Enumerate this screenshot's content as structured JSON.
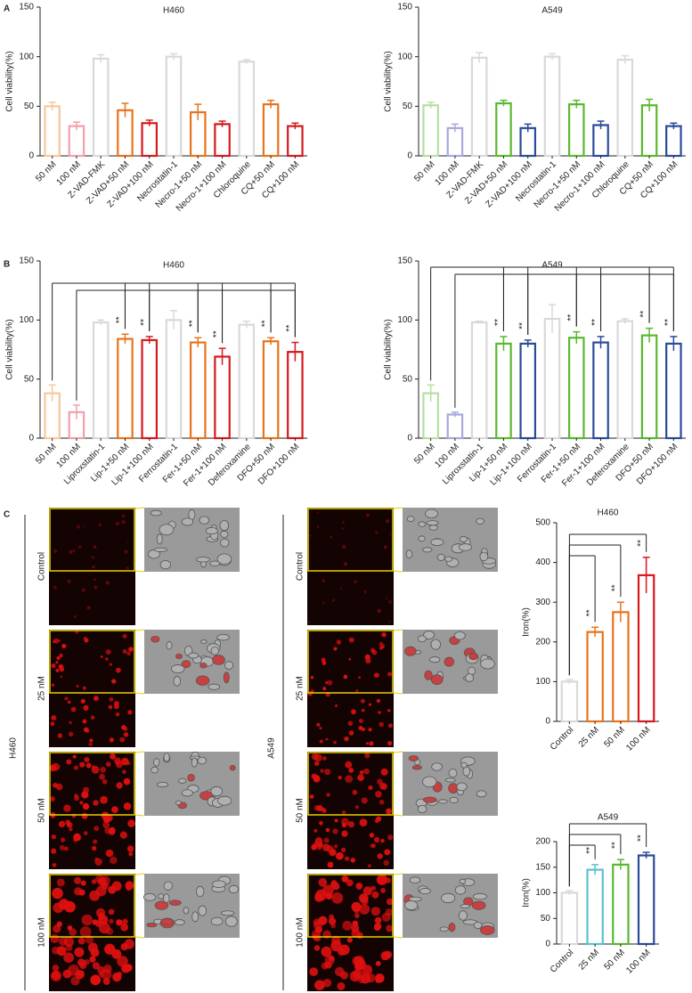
{
  "panels": [
    "A",
    "B",
    "C"
  ],
  "micrographs": [
    {
      "label": "H460",
      "rows": [
        "Control",
        "25 nM",
        "50 nM",
        "100 nM"
      ]
    },
    {
      "label": "A549",
      "rows": [
        "Control",
        "25 nM",
        "50 nM",
        "100 nM"
      ]
    }
  ],
  "chart_data": [
    {
      "type": "bar",
      "title": "H460",
      "ylabel": "Cell viability(%)",
      "categories": [
        "50 nM",
        "100 nM",
        "Z-VAD-FMK",
        "Z-VAD+50 nM",
        "Z-VAD+100 nM",
        "Necrostatin-1",
        "Necro-1+50 nM",
        "Necro-1+100 nM",
        "Chloroquine",
        "CQ+50 nM",
        "CQ+100 nM"
      ],
      "values": [
        50,
        30,
        98,
        46,
        33,
        100,
        44,
        32,
        95,
        52,
        30
      ],
      "errors": [
        4,
        4,
        4,
        7,
        3,
        3,
        8,
        3,
        2,
        4,
        3
      ],
      "colors": [
        "#f5c99a",
        "#f0a0a8",
        "#d9d9d9",
        "#e8731c",
        "#d7191c",
        "#d9d9d9",
        "#e8731c",
        "#d7191c",
        "#d9d9d9",
        "#e8731c",
        "#d7191c"
      ],
      "ylim": [
        0,
        150
      ],
      "yticks": [
        0,
        50,
        100,
        150
      ]
    },
    {
      "type": "bar",
      "title": "A549",
      "ylabel": "Cell viability(%)",
      "categories": [
        "50 nM",
        "100 nM",
        "Z-VAD-FMK",
        "Z-VAD+50 nM",
        "Z-VAD+100 nM",
        "Necrostatin-1",
        "Necro-1+50 nM",
        "Necro-1+100 nM",
        "Chloroquine",
        "CQ+50 nM",
        "CQ+100 nM"
      ],
      "values": [
        51,
        28,
        99,
        53,
        28,
        100,
        52,
        31,
        97,
        51,
        30
      ],
      "errors": [
        3,
        4,
        5,
        3,
        4,
        3,
        4,
        4,
        4,
        6,
        3
      ],
      "colors": [
        "#b5dfa0",
        "#a8a8dc",
        "#d9d9d9",
        "#5ab82e",
        "#2a4a9a",
        "#d9d9d9",
        "#5ab82e",
        "#2a4a9a",
        "#d9d9d9",
        "#5ab82e",
        "#2a4a9a"
      ],
      "ylim": [
        0,
        150
      ],
      "yticks": [
        0,
        50,
        100,
        150
      ]
    },
    {
      "type": "bar",
      "title": "H460",
      "ylabel": "Cell viability(%)",
      "categories": [
        "50 nM",
        "100 nM",
        "Liproxstatin-1",
        "Lip-1+50 nM",
        "Lip-1+100 nM",
        "Ferrostatin-1",
        "Fer-1+50 nM",
        "Fer-1+100 nM",
        "Deferoxamine",
        "DFO+50 nM",
        "DFO+100 nM"
      ],
      "values": [
        38,
        22,
        98,
        84,
        83,
        100,
        81,
        69,
        96,
        82,
        73
      ],
      "errors": [
        7,
        6,
        2,
        4,
        3,
        8,
        4,
        7,
        3,
        3,
        8
      ],
      "colors": [
        "#f5c99a",
        "#f0a0a8",
        "#d9d9d9",
        "#e8731c",
        "#d7191c",
        "#d9d9d9",
        "#e8731c",
        "#d7191c",
        "#d9d9d9",
        "#e8731c",
        "#d7191c"
      ],
      "significance": [
        null,
        null,
        null,
        "**",
        "**",
        null,
        "**",
        "**",
        null,
        "**",
        "**"
      ],
      "ylim": [
        0,
        150
      ],
      "yticks": [
        0,
        50,
        100,
        150
      ]
    },
    {
      "type": "bar",
      "title": "A549",
      "ylabel": "Cell viability(%)",
      "categories": [
        "50 nM",
        "100 nM",
        "Liproxstatin-1",
        "Lip-1+50 nM",
        "Lip-1+100 nM",
        "Ferrostatin-1",
        "Fer-1+50 nM",
        "Fer-1+100 nM",
        "Deferoxamine",
        "DFO+50 nM",
        "DFO+100 nM"
      ],
      "values": [
        38,
        20,
        98,
        80,
        80,
        101,
        85,
        81,
        99,
        87,
        80
      ],
      "errors": [
        7,
        2,
        1,
        6,
        3,
        12,
        5,
        5,
        2,
        6,
        6
      ],
      "colors": [
        "#b5dfa0",
        "#a8a8dc",
        "#d9d9d9",
        "#5ab82e",
        "#2a4a9a",
        "#d9d9d9",
        "#5ab82e",
        "#2a4a9a",
        "#d9d9d9",
        "#5ab82e",
        "#2a4a9a"
      ],
      "significance": [
        null,
        null,
        null,
        "**",
        "**",
        null,
        "**",
        "**",
        null,
        "**",
        "**"
      ],
      "ylim": [
        0,
        150
      ],
      "yticks": [
        0,
        50,
        100,
        150
      ]
    },
    {
      "type": "bar",
      "title": "H460",
      "ylabel": "Iron(%)",
      "categories": [
        "Control",
        "25 nM",
        "50 nM",
        "100 nM"
      ],
      "values": [
        100,
        225,
        275,
        368
      ],
      "errors": [
        5,
        12,
        25,
        45
      ],
      "colors": [
        "#d9d9d9",
        "#e8731c",
        "#e8731c",
        "#d7191c"
      ],
      "significance": [
        null,
        "**",
        "**",
        "**"
      ],
      "ylim": [
        0,
        500
      ],
      "yticks": [
        0,
        100,
        200,
        300,
        400,
        500
      ]
    },
    {
      "type": "bar",
      "title": "A549",
      "ylabel": "Iron(%)",
      "categories": [
        "Control",
        "25 nM",
        "50 nM",
        "100 nM"
      ],
      "values": [
        100,
        145,
        155,
        173
      ],
      "errors": [
        4,
        10,
        10,
        6
      ],
      "colors": [
        "#d9d9d9",
        "#5bc0d0",
        "#5ab82e",
        "#2a4a9a"
      ],
      "significance": [
        null,
        "**",
        "**",
        "**"
      ],
      "ylim": [
        0,
        200
      ],
      "yticks": [
        0,
        50,
        100,
        150,
        200
      ]
    }
  ]
}
